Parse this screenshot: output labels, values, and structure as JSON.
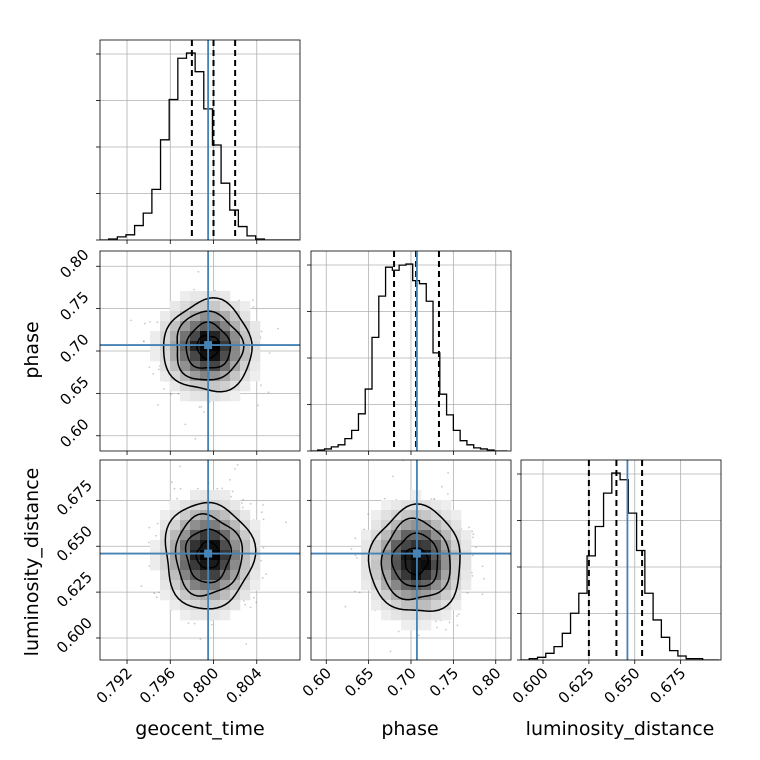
{
  "chart_data": {
    "type": "corner",
    "grid": true,
    "truth_color": "#4682b4",
    "parameters": [
      {
        "name": "geocent_time",
        "truth": 0.7995,
        "quantiles": [
          0.798,
          0.8,
          0.802
        ],
        "range": [
          0.7895,
          0.808
        ],
        "ticks": [
          0.792,
          0.796,
          0.8,
          0.804
        ],
        "tick_labels": [
          "0.792",
          "0.796",
          "0.800",
          "0.804"
        ]
      },
      {
        "name": "phase",
        "truth": 0.707,
        "quantiles": [
          0.68,
          0.706,
          0.733
        ],
        "range": [
          0.582,
          0.818
        ],
        "ticks": [
          0.6,
          0.65,
          0.7,
          0.75,
          0.8
        ],
        "tick_labels": [
          "0.60",
          "0.65",
          "0.70",
          "0.75",
          "0.80"
        ]
      },
      {
        "name": "luminosity_distance",
        "truth": 0.646,
        "quantiles": [
          0.625,
          0.64,
          0.654
        ],
        "range": [
          0.588,
          0.697
        ],
        "ticks": [
          0.6,
          0.625,
          0.65,
          0.675
        ],
        "tick_labels": [
          "0.600",
          "0.625",
          "0.650",
          "0.675"
        ]
      }
    ],
    "histograms": [
      {
        "parameter": "geocent_time",
        "bins": [
          0.7895,
          0.7903,
          0.7911,
          0.7919,
          0.7927,
          0.7935,
          0.7943,
          0.7951,
          0.7959,
          0.7967,
          0.7975,
          0.7983,
          0.7991,
          0.7999,
          0.8007,
          0.8015,
          0.8023,
          0.8031,
          0.8039,
          0.8047,
          0.8055,
          0.8063,
          0.8071,
          0.8079
        ],
        "counts": [
          0,
          1,
          3,
          5,
          14,
          26,
          49,
          97,
          136,
          176,
          181,
          163,
          127,
          92,
          55,
          29,
          13,
          4,
          1,
          0,
          0,
          0,
          0
        ]
      },
      {
        "parameter": "phase",
        "bins": [
          0.582,
          0.59,
          0.598,
          0.606,
          0.614,
          0.622,
          0.63,
          0.638,
          0.646,
          0.654,
          0.662,
          0.67,
          0.678,
          0.686,
          0.694,
          0.702,
          0.71,
          0.718,
          0.726,
          0.734,
          0.742,
          0.75,
          0.758,
          0.766,
          0.774,
          0.782,
          0.79,
          0.798,
          0.806,
          0.814
        ],
        "counts": [
          0,
          1,
          2,
          4,
          6,
          12,
          20,
          36,
          60,
          110,
          150,
          178,
          175,
          180,
          181,
          165,
          162,
          145,
          95,
          55,
          35,
          20,
          10,
          6,
          3,
          2,
          1,
          0,
          0
        ]
      },
      {
        "parameter": "luminosity_distance",
        "bins": [
          0.588,
          0.5925,
          0.597,
          0.6015,
          0.606,
          0.6105,
          0.615,
          0.6195,
          0.624,
          0.6285,
          0.633,
          0.6375,
          0.642,
          0.6465,
          0.651,
          0.6555,
          0.66,
          0.6645,
          0.669,
          0.6735,
          0.678,
          0.6825,
          0.687,
          0.6915,
          0.696
        ],
        "counts": [
          0,
          1,
          2,
          5,
          10,
          20,
          35,
          50,
          78,
          100,
          125,
          140,
          135,
          110,
          82,
          50,
          30,
          17,
          7,
          3,
          1,
          1,
          0,
          0
        ]
      }
    ],
    "joint_2d": [
      {
        "x": "geocent_time",
        "y": "phase",
        "mean": [
          0.7995,
          0.705
        ],
        "sigma": [
          0.00205,
          0.027
        ]
      },
      {
        "x": "geocent_time",
        "y": "luminosity_distance",
        "mean": [
          0.7995,
          0.645
        ],
        "sigma": [
          0.00205,
          0.0145
        ]
      },
      {
        "x": "phase",
        "y": "luminosity_distance",
        "mean": [
          0.706,
          0.642
        ],
        "sigma": [
          0.027,
          0.0145
        ]
      }
    ],
    "contour_levels": [
      0.118,
      0.393,
      0.675,
      0.864
    ],
    "labels": {
      "x": [
        "geocent_time",
        "phase",
        "luminosity_distance"
      ],
      "y": [
        "phase",
        "luminosity_distance"
      ]
    }
  }
}
